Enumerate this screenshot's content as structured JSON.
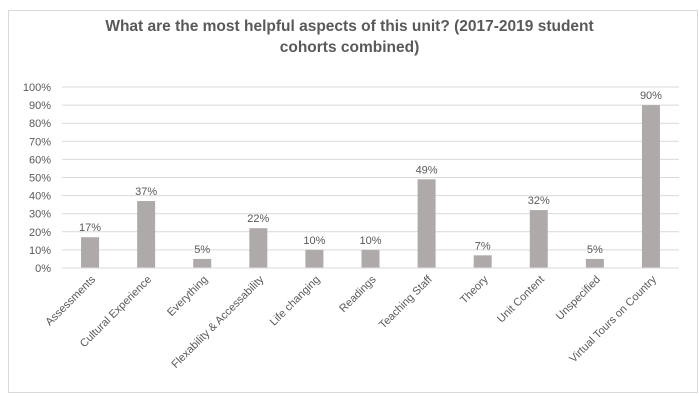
{
  "chart_data": {
    "type": "bar",
    "title_line1": "What are the most helpful aspects of this unit? (2017-2019 student",
    "title_line2": "cohorts combined)",
    "categories": [
      "Assessments",
      "Cultural Experience",
      "Everything",
      "Flexability & Accessability",
      "Life changing",
      "Readings",
      "Teaching Staff",
      "Theory",
      "Unit Content",
      "Unspecified",
      "Virtual Tours on Country"
    ],
    "values": [
      17,
      37,
      5,
      22,
      10,
      10,
      49,
      7,
      32,
      5,
      90
    ],
    "value_labels": [
      "17%",
      "37%",
      "5%",
      "22%",
      "10%",
      "10%",
      "49%",
      "7%",
      "32%",
      "5%",
      "90%"
    ],
    "yticks": [
      "0%",
      "10%",
      "20%",
      "30%",
      "40%",
      "50%",
      "60%",
      "70%",
      "80%",
      "90%",
      "100%"
    ],
    "ylim": [
      0,
      100
    ],
    "grid": true,
    "legend": "none",
    "bar_color": "#aeaaaa",
    "grid_color": "#d9d9d9",
    "text_color": "#595959"
  }
}
